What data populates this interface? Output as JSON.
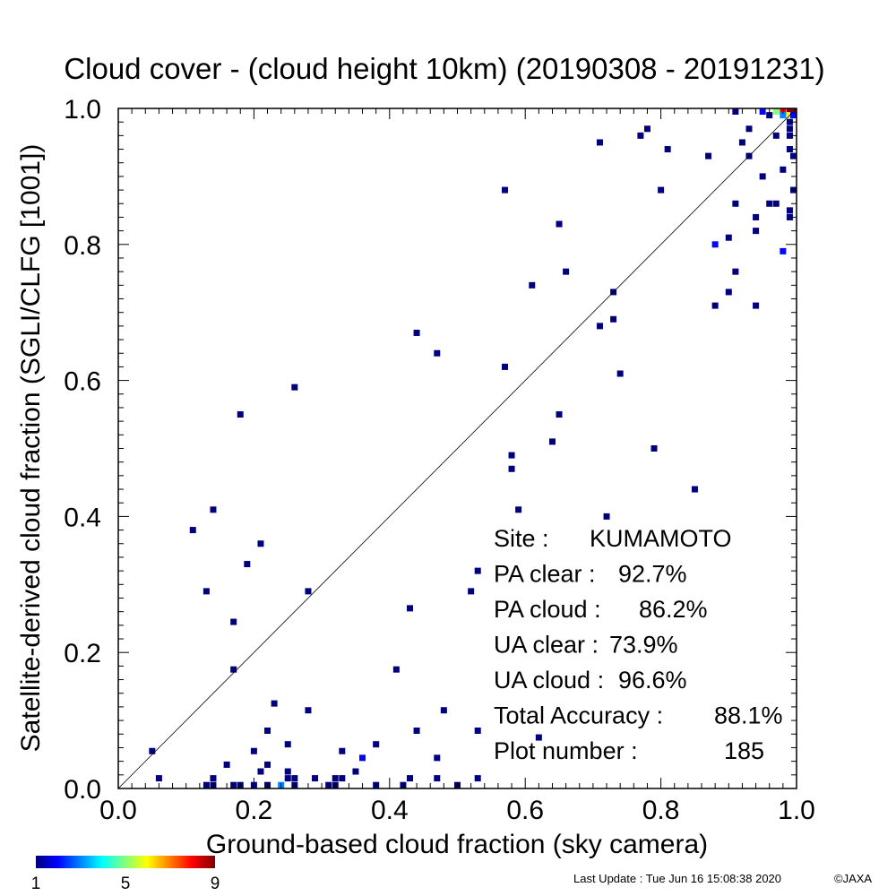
{
  "chart_data": {
    "type": "heatmap",
    "title": "Cloud cover - (cloud height 10km)  (20190308 - 20191231)",
    "xlabel": "Ground-based cloud fraction (sky camera)",
    "ylabel": "Satellite-derived cloud fraction (SGLI/CLFG [1001])",
    "xlim": [
      0.0,
      1.0
    ],
    "ylim": [
      0.0,
      1.0
    ],
    "xticks": [
      "0.0",
      "0.2",
      "0.4",
      "0.6",
      "0.8",
      "1.0"
    ],
    "yticks": [
      "0.0",
      "0.2",
      "0.4",
      "0.6",
      "0.8",
      "1.0"
    ],
    "reference_line": "y = x",
    "grid": false,
    "colorbar": {
      "min": 1,
      "max": 9,
      "ticks": [
        "1",
        "5",
        "9"
      ],
      "colors": [
        "#00007f",
        "#0000ff",
        "#00ffff",
        "#ffff00",
        "#ff0000",
        "#7f0000"
      ]
    },
    "points": [
      {
        "x": 0.05,
        "y": 0.055,
        "c": 1
      },
      {
        "x": 0.06,
        "y": 0.015,
        "c": 1
      },
      {
        "x": 0.11,
        "y": 0.38,
        "c": 1
      },
      {
        "x": 0.13,
        "y": 0.29,
        "c": 1
      },
      {
        "x": 0.14,
        "y": 0.41,
        "c": 1
      },
      {
        "x": 0.14,
        "y": 0.015,
        "c": 1
      },
      {
        "x": 0.13,
        "y": 0.005,
        "c": 1
      },
      {
        "x": 0.14,
        "y": 0.005,
        "c": 1
      },
      {
        "x": 0.16,
        "y": 0.035,
        "c": 1
      },
      {
        "x": 0.17,
        "y": 0.245,
        "c": 1
      },
      {
        "x": 0.17,
        "y": 0.175,
        "c": 1
      },
      {
        "x": 0.17,
        "y": 0.005,
        "c": 1
      },
      {
        "x": 0.18,
        "y": 0.55,
        "c": 1
      },
      {
        "x": 0.18,
        "y": 0.005,
        "c": 1
      },
      {
        "x": 0.19,
        "y": 0.33,
        "c": 1
      },
      {
        "x": 0.2,
        "y": 0.055,
        "c": 1
      },
      {
        "x": 0.2,
        "y": 0.005,
        "c": 1
      },
      {
        "x": 0.21,
        "y": 0.36,
        "c": 1
      },
      {
        "x": 0.21,
        "y": 0.025,
        "c": 1
      },
      {
        "x": 0.22,
        "y": 0.085,
        "c": 1
      },
      {
        "x": 0.22,
        "y": 0.035,
        "c": 1
      },
      {
        "x": 0.22,
        "y": 0.005,
        "c": 1
      },
      {
        "x": 0.23,
        "y": 0.125,
        "c": 1
      },
      {
        "x": 0.24,
        "y": 0.005,
        "c": 3
      },
      {
        "x": 0.25,
        "y": 0.065,
        "c": 1
      },
      {
        "x": 0.25,
        "y": 0.025,
        "c": 1
      },
      {
        "x": 0.25,
        "y": 0.015,
        "c": 1
      },
      {
        "x": 0.26,
        "y": 0.59,
        "c": 1
      },
      {
        "x": 0.26,
        "y": 0.015,
        "c": 1
      },
      {
        "x": 0.26,
        "y": 0.005,
        "c": 1
      },
      {
        "x": 0.28,
        "y": 0.29,
        "c": 1
      },
      {
        "x": 0.28,
        "y": 0.115,
        "c": 1
      },
      {
        "x": 0.29,
        "y": 0.015,
        "c": 1
      },
      {
        "x": 0.31,
        "y": 0.005,
        "c": 1
      },
      {
        "x": 0.32,
        "y": 0.015,
        "c": 1
      },
      {
        "x": 0.32,
        "y": 0.005,
        "c": 1
      },
      {
        "x": 0.33,
        "y": 0.055,
        "c": 1
      },
      {
        "x": 0.33,
        "y": 0.015,
        "c": 1
      },
      {
        "x": 0.35,
        "y": 0.025,
        "c": 1
      },
      {
        "x": 0.36,
        "y": 0.045,
        "c": 2
      },
      {
        "x": 0.38,
        "y": 0.065,
        "c": 1
      },
      {
        "x": 0.38,
        "y": 0.005,
        "c": 1
      },
      {
        "x": 0.41,
        "y": 0.175,
        "c": 1
      },
      {
        "x": 0.42,
        "y": 0.005,
        "c": 1
      },
      {
        "x": 0.43,
        "y": 0.265,
        "c": 1
      },
      {
        "x": 0.43,
        "y": 0.015,
        "c": 1
      },
      {
        "x": 0.44,
        "y": 0.67,
        "c": 1
      },
      {
        "x": 0.44,
        "y": 0.085,
        "c": 1
      },
      {
        "x": 0.47,
        "y": 0.64,
        "c": 1
      },
      {
        "x": 0.47,
        "y": 0.045,
        "c": 1
      },
      {
        "x": 0.47,
        "y": 0.015,
        "c": 1
      },
      {
        "x": 0.48,
        "y": 0.115,
        "c": 1
      },
      {
        "x": 0.5,
        "y": 0.005,
        "c": 1
      },
      {
        "x": 0.52,
        "y": 0.29,
        "c": 1
      },
      {
        "x": 0.53,
        "y": 0.32,
        "c": 1
      },
      {
        "x": 0.53,
        "y": 0.085,
        "c": 1
      },
      {
        "x": 0.53,
        "y": 0.015,
        "c": 1
      },
      {
        "x": 0.57,
        "y": 0.88,
        "c": 1
      },
      {
        "x": 0.57,
        "y": 0.62,
        "c": 1
      },
      {
        "x": 0.58,
        "y": 0.49,
        "c": 1
      },
      {
        "x": 0.58,
        "y": 0.47,
        "c": 1
      },
      {
        "x": 0.59,
        "y": 0.41,
        "c": 1
      },
      {
        "x": 0.61,
        "y": 0.74,
        "c": 1
      },
      {
        "x": 0.62,
        "y": 0.075,
        "c": 1
      },
      {
        "x": 0.64,
        "y": 0.51,
        "c": 1
      },
      {
        "x": 0.65,
        "y": 0.83,
        "c": 1
      },
      {
        "x": 0.65,
        "y": 0.55,
        "c": 1
      },
      {
        "x": 0.66,
        "y": 0.76,
        "c": 1
      },
      {
        "x": 0.71,
        "y": 0.95,
        "c": 1
      },
      {
        "x": 0.71,
        "y": 0.68,
        "c": 1
      },
      {
        "x": 0.72,
        "y": 0.4,
        "c": 1
      },
      {
        "x": 0.73,
        "y": 0.73,
        "c": 1
      },
      {
        "x": 0.73,
        "y": 0.69,
        "c": 1
      },
      {
        "x": 0.74,
        "y": 0.61,
        "c": 1
      },
      {
        "x": 0.77,
        "y": 0.96,
        "c": 1
      },
      {
        "x": 0.78,
        "y": 0.97,
        "c": 1
      },
      {
        "x": 0.79,
        "y": 0.5,
        "c": 1
      },
      {
        "x": 0.8,
        "y": 0.88,
        "c": 1
      },
      {
        "x": 0.81,
        "y": 0.94,
        "c": 1
      },
      {
        "x": 0.85,
        "y": 0.44,
        "c": 1
      },
      {
        "x": 0.87,
        "y": 0.93,
        "c": 1
      },
      {
        "x": 0.88,
        "y": 0.8,
        "c": 2
      },
      {
        "x": 0.88,
        "y": 0.71,
        "c": 1
      },
      {
        "x": 0.9,
        "y": 0.81,
        "c": 1
      },
      {
        "x": 0.9,
        "y": 0.73,
        "c": 1
      },
      {
        "x": 0.91,
        "y": 1.0,
        "c": 1
      },
      {
        "x": 0.91,
        "y": 0.86,
        "c": 1
      },
      {
        "x": 0.91,
        "y": 0.76,
        "c": 1
      },
      {
        "x": 0.92,
        "y": 0.95,
        "c": 1
      },
      {
        "x": 0.93,
        "y": 0.97,
        "c": 1
      },
      {
        "x": 0.93,
        "y": 0.93,
        "c": 1
      },
      {
        "x": 0.94,
        "y": 0.84,
        "c": 1
      },
      {
        "x": 0.94,
        "y": 0.82,
        "c": 1
      },
      {
        "x": 0.94,
        "y": 0.71,
        "c": 1
      },
      {
        "x": 0.95,
        "y": 1.0,
        "c": 2
      },
      {
        "x": 0.95,
        "y": 0.9,
        "c": 1
      },
      {
        "x": 0.96,
        "y": 0.86,
        "c": 1
      },
      {
        "x": 0.96,
        "y": 0.99,
        "c": 1
      },
      {
        "x": 0.97,
        "y": 1.0,
        "c": 5
      },
      {
        "x": 0.97,
        "y": 0.96,
        "c": 1
      },
      {
        "x": 0.97,
        "y": 0.86,
        "c": 1
      },
      {
        "x": 0.98,
        "y": 1.0,
        "c": 8
      },
      {
        "x": 0.98,
        "y": 0.99,
        "c": 3
      },
      {
        "x": 0.98,
        "y": 0.91,
        "c": 1
      },
      {
        "x": 0.98,
        "y": 0.79,
        "c": 2
      },
      {
        "x": 0.99,
        "y": 1.0,
        "c": 9
      },
      {
        "x": 0.99,
        "y": 0.99,
        "c": 6
      },
      {
        "x": 0.99,
        "y": 0.98,
        "c": 1
      },
      {
        "x": 0.99,
        "y": 0.97,
        "c": 1
      },
      {
        "x": 0.99,
        "y": 0.96,
        "c": 1
      },
      {
        "x": 0.99,
        "y": 0.94,
        "c": 1
      },
      {
        "x": 0.99,
        "y": 0.85,
        "c": 1
      },
      {
        "x": 0.99,
        "y": 0.84,
        "c": 1
      },
      {
        "x": 1.0,
        "y": 1.0,
        "c": 9
      },
      {
        "x": 1.0,
        "y": 0.99,
        "c": 2
      },
      {
        "x": 1.0,
        "y": 0.93,
        "c": 1
      },
      {
        "x": 1.0,
        "y": 0.88,
        "c": 1
      }
    ],
    "annotations": [
      {
        "label": "Site :",
        "value": "KUMAMOTO"
      },
      {
        "label": "PA clear :",
        "value": "92.7%"
      },
      {
        "label": "PA cloud :",
        "value": "86.2%"
      },
      {
        "label": "UA clear :",
        "value": "73.9%"
      },
      {
        "label": "UA cloud :",
        "value": "96.6%"
      },
      {
        "label": "Total Accuracy :",
        "value": "88.1%"
      },
      {
        "label": "Plot number :",
        "value": "185"
      }
    ]
  },
  "footer": {
    "last_update": "Last Update : Tue Jun 16 15:08:38 2020",
    "copyright": "©JAXA"
  }
}
